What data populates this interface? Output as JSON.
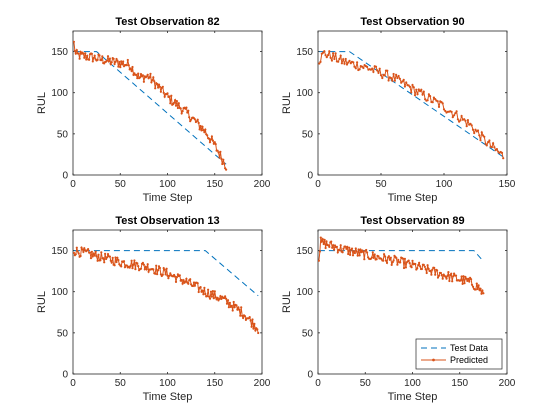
{
  "colors": {
    "test": "#0072BD",
    "pred": "#D95319",
    "axis": "#262626"
  },
  "legend": {
    "test_label": "Test Data",
    "pred_label": "Predicted",
    "placement": "bottom-right",
    "panel": 3
  },
  "chart_data": [
    {
      "type": "line",
      "title": "Test Observation 82",
      "xlabel": "Time Step",
      "ylabel": "RUL",
      "xlim": [
        0,
        200
      ],
      "ylim": [
        0,
        175
      ],
      "xticks": [
        0,
        50,
        100,
        150,
        200
      ],
      "yticks": [
        0,
        50,
        100,
        150
      ],
      "grid": false,
      "series": [
        {
          "name": "Test Data",
          "style": "dashed",
          "x": [
            1,
            25,
            162
          ],
          "y": [
            150,
            150,
            13
          ]
        },
        {
          "name": "Predicted",
          "style": "line-dots",
          "n": 162,
          "knots": [
            [
              1,
              160
            ],
            [
              3,
              146
            ],
            [
              20,
              143
            ],
            [
              40,
              138
            ],
            [
              60,
              134
            ],
            [
              70,
              118
            ],
            [
              80,
              120
            ],
            [
              100,
              95
            ],
            [
              120,
              76
            ],
            [
              140,
              53
            ],
            [
              150,
              36
            ],
            [
              162,
              11
            ]
          ]
        }
      ]
    },
    {
      "type": "line",
      "title": "Test Observation 90",
      "xlabel": "Time Step",
      "ylabel": "RUL",
      "xlim": [
        0,
        150
      ],
      "ylim": [
        0,
        175
      ],
      "xticks": [
        0,
        50,
        100,
        150
      ],
      "yticks": [
        0,
        50,
        100,
        150
      ],
      "grid": false,
      "series": [
        {
          "name": "Test Data",
          "style": "dashed",
          "x": [
            1,
            25,
            147
          ],
          "y": [
            150,
            150,
            22
          ]
        },
        {
          "name": "Predicted",
          "style": "line-dots",
          "n": 147,
          "knots": [
            [
              1,
              140
            ],
            [
              5,
              148
            ],
            [
              20,
              138
            ],
            [
              40,
              130
            ],
            [
              60,
              118
            ],
            [
              80,
              100
            ],
            [
              100,
              83
            ],
            [
              120,
              62
            ],
            [
              135,
              38
            ],
            [
              147,
              23
            ]
          ]
        }
      ]
    },
    {
      "type": "line",
      "title": "Test Observation 13",
      "xlabel": "Time Step",
      "ylabel": "RUL",
      "xlim": [
        0,
        200
      ],
      "ylim": [
        0,
        175
      ],
      "xticks": [
        0,
        50,
        100,
        150,
        200
      ],
      "yticks": [
        0,
        50,
        100,
        150
      ],
      "grid": false,
      "series": [
        {
          "name": "Test Data",
          "style": "dashed",
          "x": [
            1,
            140,
            196
          ],
          "y": [
            150,
            150,
            95
          ]
        },
        {
          "name": "Predicted",
          "style": "line-dots",
          "n": 196,
          "knots": [
            [
              1,
              150
            ],
            [
              20,
              145
            ],
            [
              50,
              136
            ],
            [
              80,
              130
            ],
            [
              100,
              122
            ],
            [
              120,
              112
            ],
            [
              140,
              100
            ],
            [
              160,
              90
            ],
            [
              180,
              74
            ],
            [
              196,
              55
            ]
          ]
        }
      ]
    },
    {
      "type": "line",
      "title": "Test Observation 89",
      "xlabel": "Time Step",
      "ylabel": "RUL",
      "xlim": [
        0,
        200
      ],
      "ylim": [
        0,
        175
      ],
      "xticks": [
        0,
        50,
        100,
        150,
        200
      ],
      "yticks": [
        0,
        50,
        100,
        150
      ],
      "grid": false,
      "series": [
        {
          "name": "Test Data",
          "style": "dashed",
          "x": [
            1,
            165,
            175
          ],
          "y": [
            150,
            150,
            137
          ]
        },
        {
          "name": "Predicted",
          "style": "line-dots",
          "n": 175,
          "knots": [
            [
              1,
              142
            ],
            [
              3,
              160
            ],
            [
              25,
              152
            ],
            [
              50,
              145
            ],
            [
              80,
              138
            ],
            [
              100,
              132
            ],
            [
              120,
              125
            ],
            [
              140,
              118
            ],
            [
              160,
              112
            ],
            [
              170,
              105
            ],
            [
              175,
              97
            ]
          ]
        }
      ]
    }
  ]
}
